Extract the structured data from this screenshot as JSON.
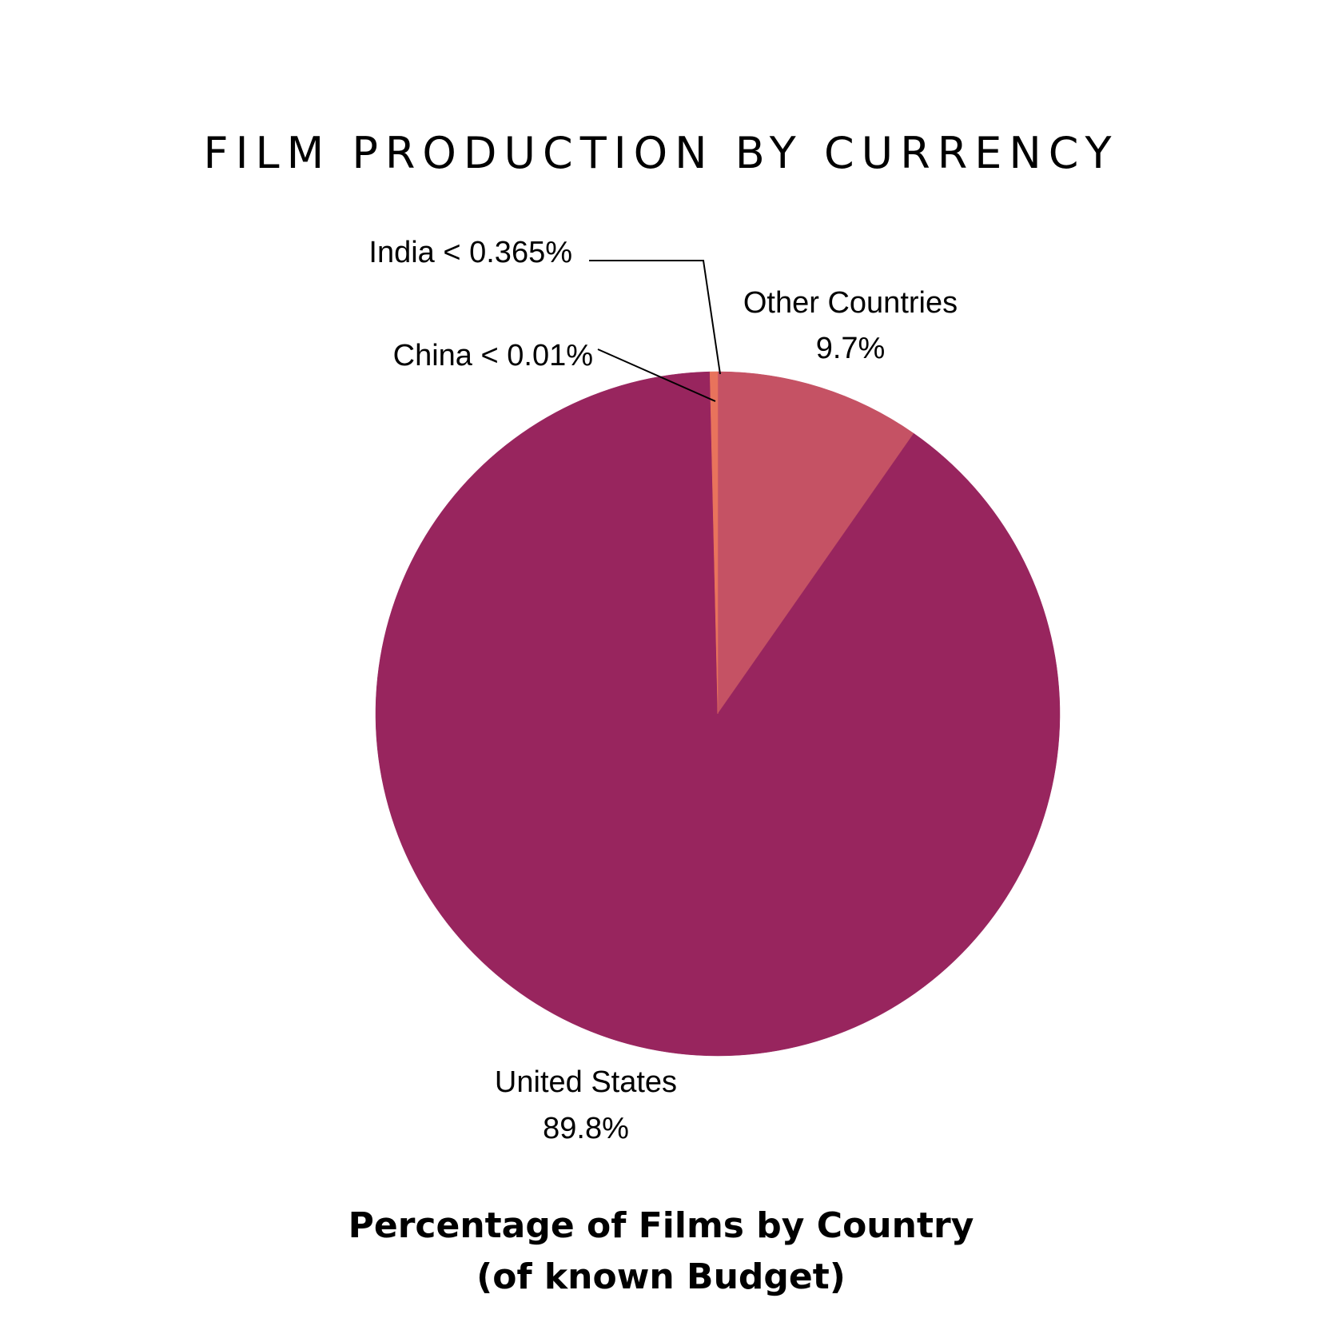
{
  "chart_data": {
    "type": "pie",
    "title": "FILM PRODUCTION BY CURRENCY",
    "subtitle": [
      "Percentage of Films by Country",
      "(of known Budget)"
    ],
    "start_angle_deg": 0,
    "direction": "clockwise",
    "slices": [
      {
        "name": "Other Countries",
        "value": 9.7,
        "color": "#c55264",
        "label_lines": [
          "Other Countries",
          "9.7%"
        ]
      },
      {
        "name": "United States",
        "value": 89.8,
        "color": "#98255e",
        "label_lines": [
          "United States",
          "89.8%"
        ]
      },
      {
        "name": "China",
        "value": 0.01,
        "color": "#98255e",
        "label_lines": [
          "China < 0.01%"
        ]
      },
      {
        "name": "India",
        "value": 0.365,
        "color": "#e8735c",
        "label_lines": [
          "India < 0.365%"
        ]
      }
    ]
  }
}
